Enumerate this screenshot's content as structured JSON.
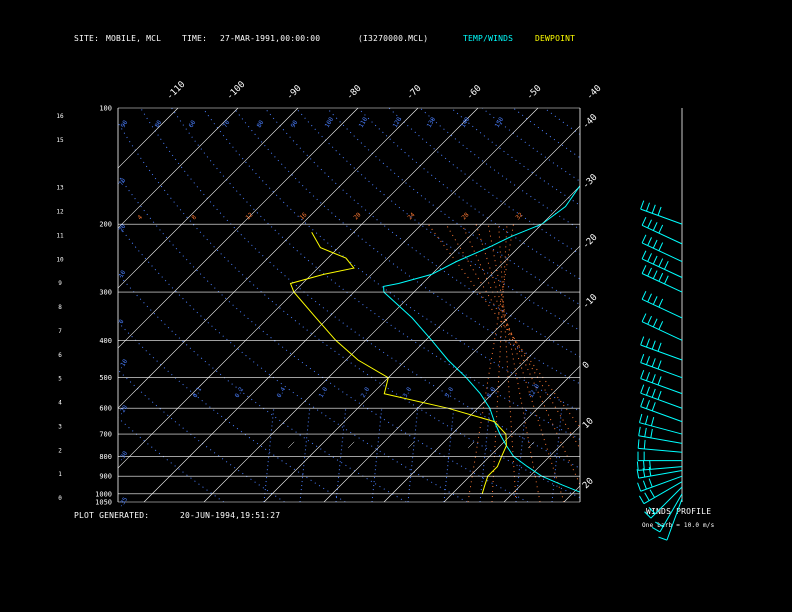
{
  "header": {
    "site_label": "SITE:",
    "site_value": "MOBILE, MCL",
    "time_label": "TIME:",
    "time_value": "27-MAR-1991,00:00:00",
    "file_id": "(I3270000.MCL)",
    "legend_temp": "TEMP/WINDS",
    "legend_dew": "DEWPOINT"
  },
  "footer": {
    "generated_label": "PLOT GENERATED:",
    "generated_value": "20-JUN-1994,19:51:27",
    "winds_title": "WINDS PROFILE",
    "barb_note": "One barb = 10.0 m/s"
  },
  "colors": {
    "grid": "#ffffff",
    "temp": "#00ffff",
    "dewpoint": "#ffff00",
    "dry_adiabat": "#4a7fff",
    "moist_adiabat": "#ff7a33",
    "mixing_ratio": "#4a7fff"
  },
  "chart_data": {
    "type": "line",
    "pressure_levels": [
      100,
      200,
      300,
      400,
      500,
      600,
      700,
      800,
      900,
      1000,
      1050
    ],
    "height_ticks": [
      0,
      1,
      2,
      3,
      4,
      5,
      6,
      7,
      8,
      9,
      10,
      11,
      12,
      13,
      15,
      16
    ],
    "temp_ticks": [
      -110,
      -100,
      -90,
      -80,
      -70,
      -60,
      -50,
      -40,
      -30,
      -20,
      -10,
      0,
      10,
      20,
      30
    ],
    "top_dry_labels": [
      "90",
      "80",
      "60",
      "70",
      "80",
      "90",
      "100",
      "110",
      "120",
      "130",
      "140",
      "150"
    ],
    "moist_labels": [
      "4",
      "8",
      "12",
      "16",
      "20",
      "24",
      "28",
      "32"
    ],
    "mixing_labels": [
      "0.1",
      "0.2",
      "0.4",
      "1.0",
      "2.0",
      "3.0",
      "5.0",
      "8.0",
      "12.0"
    ],
    "left_dry_labels": [
      "70",
      "20",
      "10",
      "0",
      "-10",
      "-20",
      "-30",
      "-35"
    ],
    "series": [
      {
        "name": "TEMP/WINDS",
        "points": [
          [
            1000,
            22
          ],
          [
            950,
            17
          ],
          [
            900,
            12
          ],
          [
            850,
            8
          ],
          [
            800,
            4
          ],
          [
            750,
            1
          ],
          [
            700,
            -2
          ],
          [
            650,
            -5
          ],
          [
            600,
            -8
          ],
          [
            550,
            -12
          ],
          [
            500,
            -17
          ],
          [
            450,
            -23
          ],
          [
            400,
            -29
          ],
          [
            350,
            -36
          ],
          [
            300,
            -45
          ],
          [
            290,
            -46
          ],
          [
            285,
            -44
          ],
          [
            270,
            -40
          ],
          [
            250,
            -38
          ],
          [
            230,
            -35
          ],
          [
            215,
            -33
          ],
          [
            200,
            -30
          ],
          [
            180,
            -29
          ],
          [
            160,
            -30
          ],
          [
            150,
            -30
          ]
        ]
      },
      {
        "name": "DEWPOINT",
        "points": [
          [
            1000,
            5
          ],
          [
            950,
            4
          ],
          [
            900,
            3
          ],
          [
            850,
            3
          ],
          [
            800,
            2
          ],
          [
            750,
            1
          ],
          [
            700,
            -1
          ],
          [
            650,
            -5
          ],
          [
            600,
            -15
          ],
          [
            550,
            -28
          ],
          [
            500,
            -30
          ],
          [
            450,
            -38
          ],
          [
            400,
            -45
          ],
          [
            350,
            -52
          ],
          [
            300,
            -60
          ],
          [
            285,
            -62
          ],
          [
            270,
            -58
          ],
          [
            260,
            -54
          ],
          [
            245,
            -57
          ],
          [
            230,
            -63
          ],
          [
            210,
            -67
          ]
        ]
      }
    ],
    "winds": [
      {
        "pressure": 1030,
        "dir": 200,
        "speed": 10
      },
      {
        "pressure": 1000,
        "dir": 210,
        "speed": 15
      },
      {
        "pressure": 960,
        "dir": 225,
        "speed": 20
      },
      {
        "pressure": 930,
        "dir": 240,
        "speed": 25
      },
      {
        "pressure": 900,
        "dir": 250,
        "speed": 30
      },
      {
        "pressure": 870,
        "dir": 260,
        "speed": 30
      },
      {
        "pressure": 850,
        "dir": 265,
        "speed": 25
      },
      {
        "pressure": 820,
        "dir": 270,
        "speed": 20
      },
      {
        "pressure": 780,
        "dir": 275,
        "speed": 20
      },
      {
        "pressure": 740,
        "dir": 280,
        "speed": 25
      },
      {
        "pressure": 700,
        "dir": 285,
        "speed": 30
      },
      {
        "pressure": 650,
        "dir": 290,
        "speed": 30
      },
      {
        "pressure": 600,
        "dir": 290,
        "speed": 35
      },
      {
        "pressure": 550,
        "dir": 290,
        "speed": 35
      },
      {
        "pressure": 500,
        "dir": 290,
        "speed": 40
      },
      {
        "pressure": 450,
        "dir": 290,
        "speed": 40
      },
      {
        "pressure": 400,
        "dir": 295,
        "speed": 40
      },
      {
        "pressure": 350,
        "dir": 295,
        "speed": 40
      },
      {
        "pressure": 300,
        "dir": 295,
        "speed": 45
      },
      {
        "pressure": 275,
        "dir": 295,
        "speed": 45
      },
      {
        "pressure": 250,
        "dir": 295,
        "speed": 40
      },
      {
        "pressure": 225,
        "dir": 295,
        "speed": 40
      },
      {
        "pressure": 200,
        "dir": 290,
        "speed": 40
      }
    ]
  }
}
